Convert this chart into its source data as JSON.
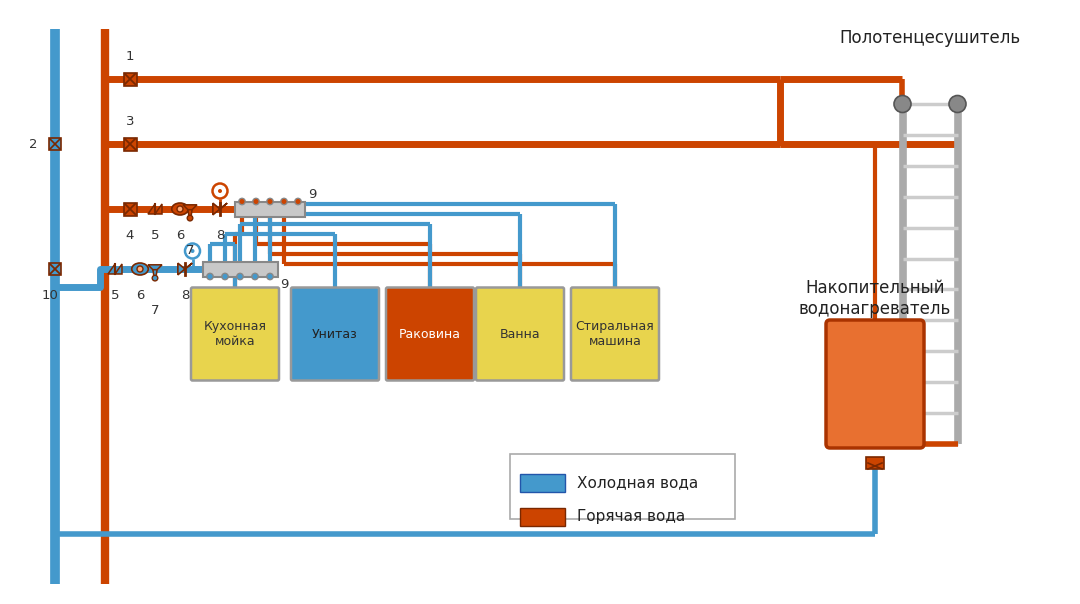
{
  "bg_color": "#ffffff",
  "hot_color": "#CC4400",
  "cold_color": "#4499CC",
  "hot_color2": "#D04010",
  "title_towel": "Полотенцесушитель",
  "title_heater": "Накопительный\nводонагреватель",
  "legend_cold": "Холодная вода",
  "legend_hot": "Горячая вода",
  "appliances": [
    {
      "name": "Кухонная\nмойка",
      "color": "#E8D44D",
      "text_color": "#333333"
    },
    {
      "name": "Унитаз",
      "color": "#4499CC",
      "text_color": "#222222"
    },
    {
      "name": "Раковина",
      "color": "#CC4400",
      "text_color": "#ffffff"
    },
    {
      "name": "Ванна",
      "color": "#E8D44D",
      "text_color": "#333333"
    },
    {
      "name": "Стиральная\nмашина",
      "color": "#E8D44D",
      "text_color": "#333333"
    }
  ]
}
